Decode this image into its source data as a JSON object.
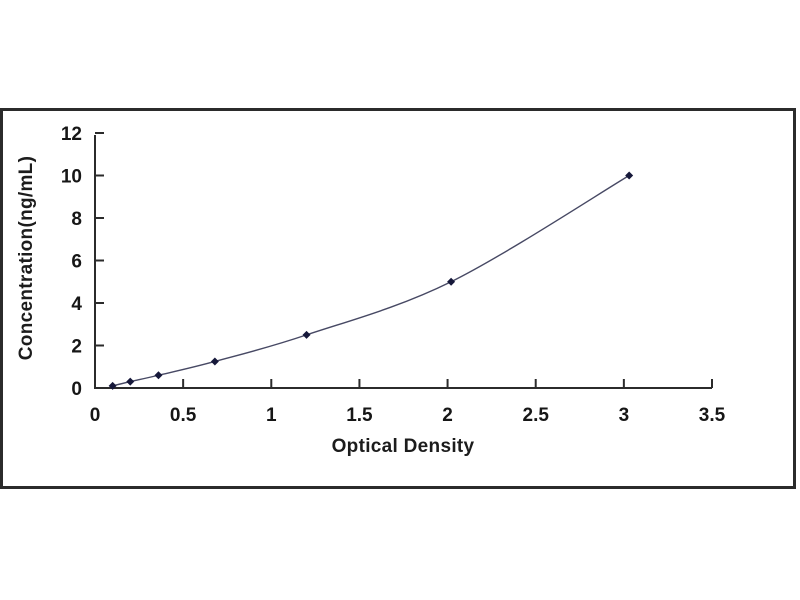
{
  "page": {
    "background": "#ffffff"
  },
  "figure": {
    "frame_color": "#2b2b2b",
    "frame_background": "#ffffff"
  },
  "chart_data": {
    "type": "line",
    "title": "",
    "xlabel": "Optical Density",
    "ylabel": "Concentration(ng/mL)",
    "x": [
      0.1,
      0.2,
      0.36,
      0.68,
      1.2,
      2.02,
      3.03
    ],
    "y": [
      0.1,
      0.3,
      0.6,
      1.25,
      2.5,
      5.0,
      10.0
    ],
    "xlim": [
      0,
      3.5
    ],
    "ylim": [
      0,
      12
    ],
    "x_tick_values": [
      0,
      0.5,
      1,
      1.5,
      2,
      2.5,
      3,
      3.5
    ],
    "x_tick_labels": [
      "0",
      "0.5",
      "1",
      "1.5",
      "2",
      "2.5",
      "3",
      "3.5"
    ],
    "y_tick_values": [
      0,
      2,
      4,
      6,
      8,
      10,
      12
    ],
    "y_tick_labels": [
      "0",
      "2",
      "4",
      "6",
      "8",
      "10",
      "12"
    ],
    "grid": false,
    "legend": false,
    "marker": "diamond",
    "axis_color": "#2b2b2b",
    "tick_label_color": "#161616",
    "line_color": "#474964",
    "marker_color": "#16183a"
  }
}
